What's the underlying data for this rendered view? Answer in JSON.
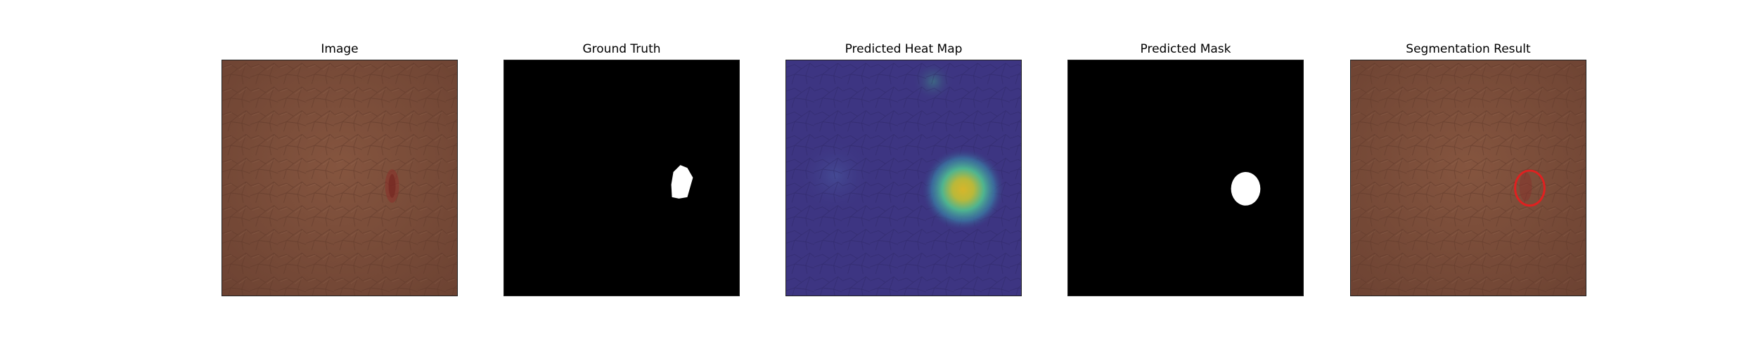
{
  "figure": {
    "panels": [
      {
        "title": "Image"
      },
      {
        "title": "Ground Truth"
      },
      {
        "title": "Predicted Heat Map"
      },
      {
        "title": "Predicted Mask"
      },
      {
        "title": "Segmentation Result"
      }
    ]
  },
  "colors": {
    "leather_base": "#7a4d3a",
    "mask_background": "#000000",
    "mask_foreground": "#ffffff",
    "heatmap_base": "#3b3380",
    "heatmap_hot": "#e8c21a",
    "defect": "#8a2f2a",
    "result_outline": "#e02020"
  }
}
